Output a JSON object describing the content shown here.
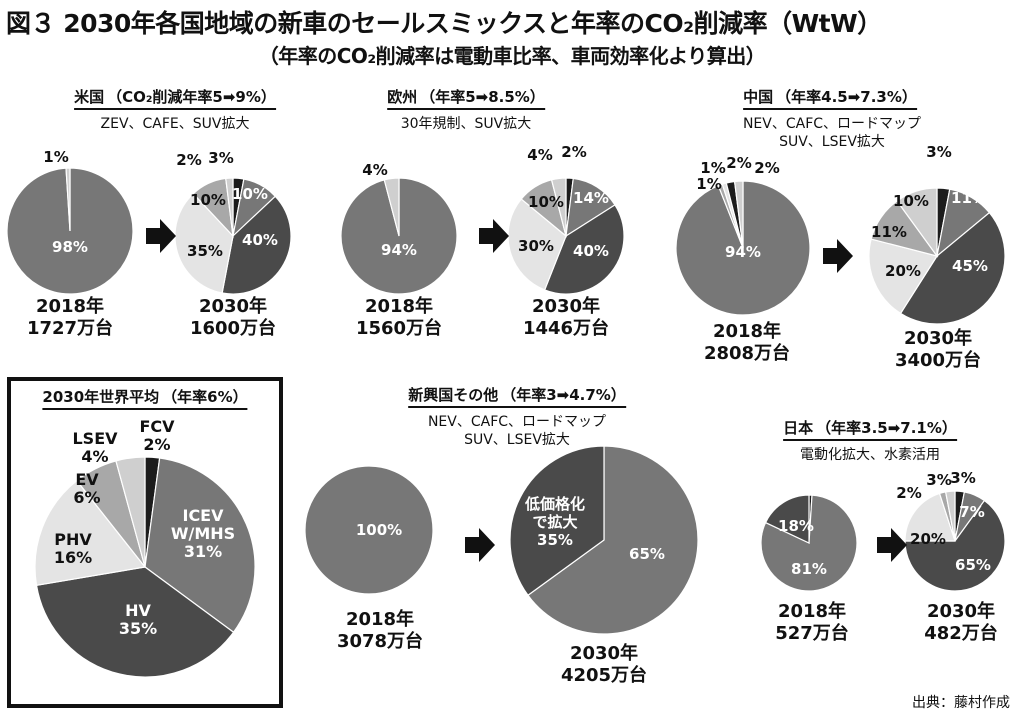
{
  "title": "図３ 2030年各国地域の新車のセールスミックスと年率のCO₂削減率（WtW）",
  "subtitle": "（年率のCO₂削減率は電動車比率、車両効率化より算出）",
  "source": "出典：藤村作成",
  "colors": {
    "ICEV": "#777777",
    "HV": "#4a4a4a",
    "PHV": "#e4e4e4",
    "EV": "#a8a8a8",
    "LSEV": "#cfcfcf",
    "FCV": "#1c1c1c",
    "arrow": "#111111"
  },
  "world": {
    "region_label": "2030年世界平均",
    "rate": "（年率6%）"
  },
  "regions": [
    {
      "id": "us",
      "label": "米国",
      "rate": "（CO₂削減年率5➡9%）",
      "note": [
        "ZEV、CAFE、SUV拡大"
      ]
    },
    {
      "id": "eu",
      "label": "欧州",
      "rate": "（年率5➡8.5%）",
      "note": [
        "30年規制、SUV拡大"
      ]
    },
    {
      "id": "cn",
      "label": "中国",
      "rate": "（年率4.5➡7.3%）",
      "note": [
        "NEV、CAFC、ロードマップ",
        "SUV、LSEV拡大"
      ]
    },
    {
      "id": "em",
      "label": "新興国その他",
      "rate": "（年率3➡4.7%）",
      "note": [
        "NEV、CAFC、ロードマップ",
        "SUV、LSEV拡大"
      ]
    },
    {
      "id": "jp",
      "label": "日本",
      "rate": "（年率3.5➡7.1%）",
      "note": [
        "電動化拡大、水素活用"
      ]
    }
  ],
  "chart_data": [
    {
      "type": "pie",
      "id": "us-2018",
      "year": "2018年",
      "sales": "1727万台",
      "slices": [
        {
          "cat": "ICEV",
          "value": 98
        },
        {
          "cat": "LSEV",
          "value": 1
        }
      ]
    },
    {
      "type": "pie",
      "id": "us-2030",
      "year": "2030年",
      "sales": "1600万台",
      "slices": [
        {
          "cat": "FCV",
          "value": 3
        },
        {
          "cat": "ICEV",
          "value": 10
        },
        {
          "cat": "HV",
          "value": 40
        },
        {
          "cat": "PHV",
          "value": 35
        },
        {
          "cat": "EV",
          "value": 10
        },
        {
          "cat": "LSEV",
          "value": 2
        }
      ]
    },
    {
      "type": "pie",
      "id": "eu-2018",
      "year": "2018年",
      "sales": "1560万台",
      "slices": [
        {
          "cat": "ICEV",
          "value": 94
        },
        {
          "cat": "LSEV",
          "value": 4
        }
      ]
    },
    {
      "type": "pie",
      "id": "eu-2030",
      "year": "2030年",
      "sales": "1446万台",
      "slices": [
        {
          "cat": "FCV",
          "value": 2
        },
        {
          "cat": "ICEV",
          "value": 14
        },
        {
          "cat": "HV",
          "value": 40
        },
        {
          "cat": "PHV",
          "value": 30
        },
        {
          "cat": "EV",
          "value": 10
        },
        {
          "cat": "LSEV",
          "value": 4
        }
      ]
    },
    {
      "type": "pie",
      "id": "cn-2018",
      "year": "2018年",
      "sales": "2808万台",
      "slices": [
        {
          "cat": "ICEV",
          "value": 94
        },
        {
          "cat": "EV",
          "value": 1
        },
        {
          "cat": "PHV",
          "value": 1
        },
        {
          "cat": "FCV",
          "value": 2
        },
        {
          "cat": "LSEV",
          "value": 2
        }
      ]
    },
    {
      "type": "pie",
      "id": "cn-2030",
      "year": "2030年",
      "sales": "3400万台",
      "slices": [
        {
          "cat": "FCV",
          "value": 3
        },
        {
          "cat": "ICEV",
          "value": 11
        },
        {
          "cat": "HV",
          "value": 45
        },
        {
          "cat": "PHV",
          "value": 20
        },
        {
          "cat": "EV",
          "value": 11
        },
        {
          "cat": "LSEV",
          "value": 10
        }
      ]
    },
    {
      "type": "pie",
      "id": "world-2030",
      "slices": [
        {
          "cat": "FCV",
          "value": 2,
          "label": "FCV",
          "pct": "2%"
        },
        {
          "cat": "ICEV",
          "value": 31,
          "label": "ICEV W/MHS",
          "pct": "31%"
        },
        {
          "cat": "HV",
          "value": 35,
          "label": "HV",
          "pct": "35%"
        },
        {
          "cat": "PHV",
          "value": 16,
          "label": "PHV",
          "pct": "16%"
        },
        {
          "cat": "EV",
          "value": 6,
          "label": "EV",
          "pct": "6%"
        },
        {
          "cat": "LSEV",
          "value": 4,
          "label": "LSEV",
          "pct": "4%"
        }
      ]
    },
    {
      "type": "pie",
      "id": "em-2018",
      "year": "2018年",
      "sales": "3078万台",
      "slices": [
        {
          "cat": "ICEV",
          "value": 100
        }
      ]
    },
    {
      "type": "pie",
      "id": "em-2030",
      "year": "2030年",
      "sales": "4205万台",
      "slices": [
        {
          "cat": "ICEV",
          "value": 65
        },
        {
          "cat": "HV",
          "value": 35,
          "label": "低価格化で拡大",
          "pct": "35%"
        }
      ]
    },
    {
      "type": "pie",
      "id": "jp-2018",
      "year": "2018年",
      "sales": "527万台",
      "slices": [
        {
          "cat": "FCV",
          "value": 1
        },
        {
          "cat": "ICEV",
          "value": 81
        },
        {
          "cat": "HV",
          "value": 18
        }
      ]
    },
    {
      "type": "pie",
      "id": "jp-2030",
      "year": "2030年",
      "sales": "482万台",
      "slices": [
        {
          "cat": "FCV",
          "value": 3
        },
        {
          "cat": "ICEV",
          "value": 7
        },
        {
          "cat": "HV",
          "value": 65
        },
        {
          "cat": "PHV",
          "value": 20
        },
        {
          "cat": "EV",
          "value": 2
        },
        {
          "cat": "LSEV",
          "value": 3
        }
      ]
    }
  ]
}
